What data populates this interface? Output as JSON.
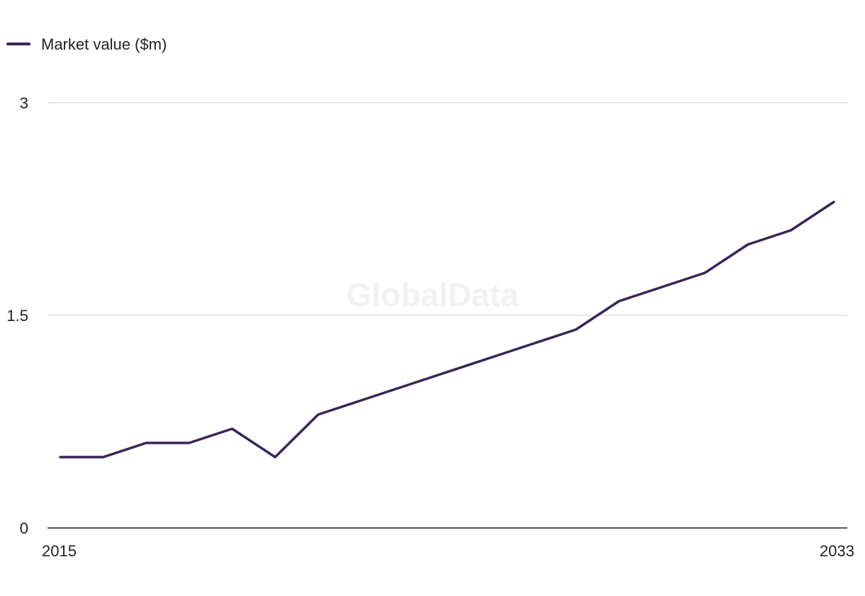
{
  "watermark": "GlobalData",
  "chart_data": {
    "type": "line",
    "title": "",
    "xlabel": "",
    "ylabel": "",
    "legend_position": "top-left",
    "grid": true,
    "x": [
      2015,
      2016,
      2017,
      2018,
      2019,
      2020,
      2021,
      2022,
      2023,
      2024,
      2025,
      2026,
      2027,
      2028,
      2029,
      2030,
      2031,
      2032,
      2033
    ],
    "x_tick_labels": [
      "2015",
      "2033"
    ],
    "y_ticks": [
      0,
      1.5,
      3
    ],
    "y_tick_labels": [
      "0",
      "1.5",
      "3"
    ],
    "ylim": [
      0,
      3
    ],
    "series": [
      {
        "name": "Market value ($m)",
        "color": "#3a2456",
        "values": [
          0.5,
          0.5,
          0.6,
          0.6,
          0.7,
          0.5,
          0.8,
          0.9,
          1.0,
          1.1,
          1.2,
          1.3,
          1.4,
          1.6,
          1.7,
          1.8,
          2.0,
          2.1,
          2.3
        ]
      }
    ]
  }
}
